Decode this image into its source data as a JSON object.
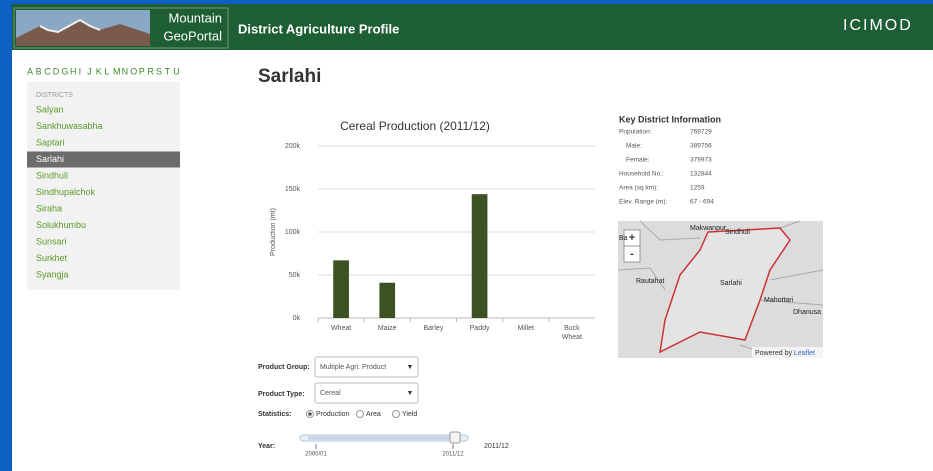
{
  "header": {
    "logo_line1": "Mountain",
    "logo_line2": "GeoPortal",
    "title": "District Agriculture Profile",
    "brand": "ICIMOD"
  },
  "sidebar": {
    "letters": [
      "A",
      "B",
      "C",
      "D",
      "G",
      "H",
      "I",
      "J",
      "K",
      "L",
      "M",
      "N",
      "O",
      "P",
      "R",
      "S",
      "T",
      "U"
    ],
    "heading": "DISTRICTS",
    "districts": [
      "Salyan",
      "Sankhuwasabha",
      "Saptari",
      "Sarlahi",
      "Sindhuli",
      "Sindhupalchok",
      "Siraha",
      "Solukhumbu",
      "Sunsari",
      "Surkhet",
      "Syangja"
    ],
    "selected": 3
  },
  "main": {
    "district_title": "Sarlahi"
  },
  "chart_data": {
    "type": "bar",
    "title": "Cereal Production (2011/12)",
    "y_label": "Production (mt)",
    "categories": [
      "Wheat",
      "Maize",
      "Barley",
      "Paddy",
      "Millet",
      "Buck Wheat"
    ],
    "values": [
      67000,
      41000,
      0,
      144000,
      0,
      0
    ],
    "color": "#3b5323",
    "ylim": [
      0,
      200000
    ],
    "yticks": [
      {
        "value": 0,
        "label": "0k"
      },
      {
        "value": 50000,
        "label": "50k"
      },
      {
        "value": 100000,
        "label": "100k"
      },
      {
        "value": 150000,
        "label": "150k"
      },
      {
        "value": 200000,
        "label": "200k"
      }
    ],
    "grid": true
  },
  "key_info": {
    "title": "Key District Information",
    "rows": [
      [
        "Population:",
        "769729"
      ],
      [
        "Male:",
        "389756"
      ],
      [
        "Female:",
        "379973"
      ],
      [
        "Household No.:",
        "132844"
      ],
      [
        "Area (sq km):",
        "1259"
      ],
      [
        "Elev. Range (m):",
        "67 - 694"
      ]
    ]
  },
  "map": {
    "labels": [
      "Makwanpur",
      "Sindhuli",
      "Ba",
      "Rautahat",
      "Sarlahi",
      "Mahottari",
      "Dhanusa"
    ],
    "zoom_in": "+",
    "zoom_out": "-",
    "attribution": "Powered by",
    "attribution_link": "Leaflet"
  },
  "controls": {
    "product_group_label": "Product Group:",
    "product_group": "Multiple Agri. Product",
    "product_type_label": "Product Type:",
    "product_type": "Cereal",
    "statistics_label": "Statistics:",
    "statistics": [
      "Production",
      "Area",
      "Yield"
    ],
    "statistics_selected": 0,
    "year_label": "Year:",
    "year_min": "2000/01",
    "year_max": "2011/12",
    "year_value": "2011/12"
  }
}
